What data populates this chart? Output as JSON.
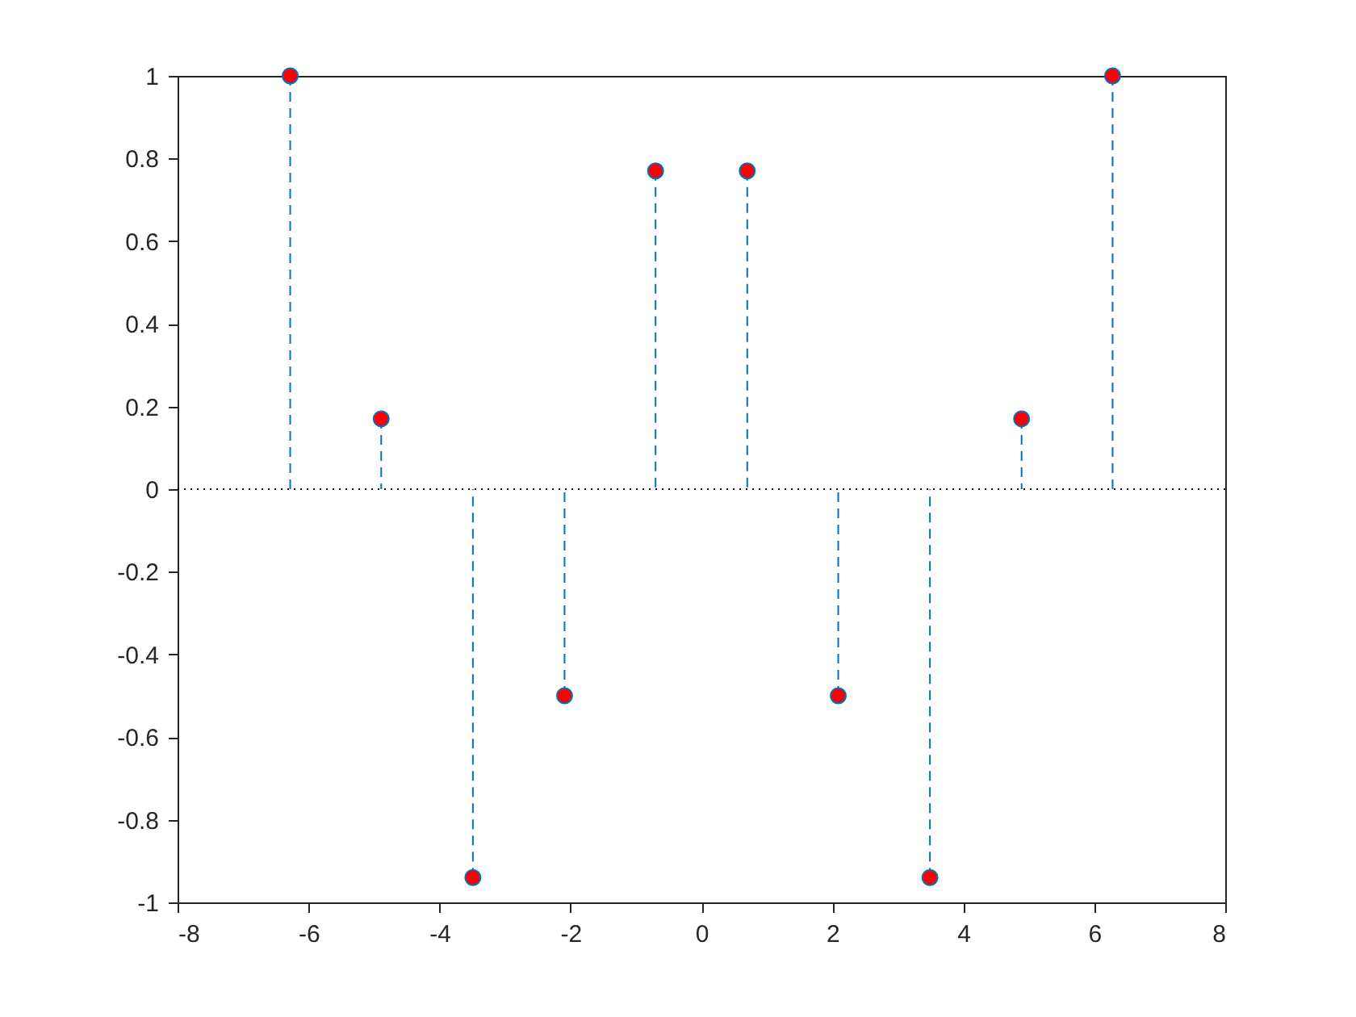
{
  "chart_data": {
    "type": "lollipop",
    "x": [
      -6.28,
      -4.89,
      -3.49,
      -2.09,
      -0.7,
      0.7,
      2.09,
      3.49,
      4.89,
      6.28
    ],
    "series": [
      {
        "color": "#ff0000",
        "values": [
          1,
          0.17,
          -0.94,
          -0.5,
          0.77,
          0.77,
          -0.5,
          -0.94,
          0.17,
          1
        ]
      }
    ],
    "xlim": [
      -8,
      8
    ],
    "xticks": [
      -8,
      -6,
      -4,
      -2,
      0,
      2,
      4,
      6,
      8
    ],
    "ylim": [
      -1,
      1
    ],
    "yticks": [
      -1,
      -0.8,
      -0.6,
      -0.4,
      -0.2,
      0,
      0.2,
      0.4,
      0.6,
      0.8,
      1
    ],
    "ref_lines": [
      {
        "axis": "y",
        "value": 0,
        "line_style": "dotted",
        "color": "#000000"
      }
    ],
    "grid": false,
    "legend": false,
    "marker": "circle",
    "line_style": "dashed"
  }
}
